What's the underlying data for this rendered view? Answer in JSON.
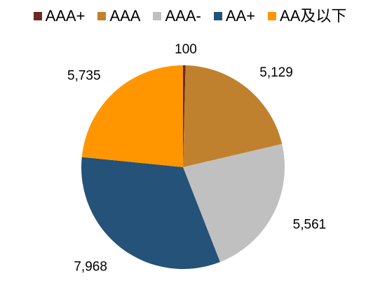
{
  "chart_data": {
    "type": "pie",
    "categories": [
      "AAA+",
      "AAA",
      "AAA-",
      "AA+",
      "AA及以下"
    ],
    "values": [
      100,
      5129,
      5561,
      7968,
      5735
    ],
    "value_labels": [
      "100",
      "5,129",
      "5,561",
      "7,968",
      "5,735"
    ],
    "colors": [
      "#6B2A24",
      "#C0812E",
      "#C0C0C0",
      "#245278",
      "#FF9600"
    ],
    "legend_position": "top",
    "start_angle_deg": 0,
    "direction": "clockwise"
  }
}
